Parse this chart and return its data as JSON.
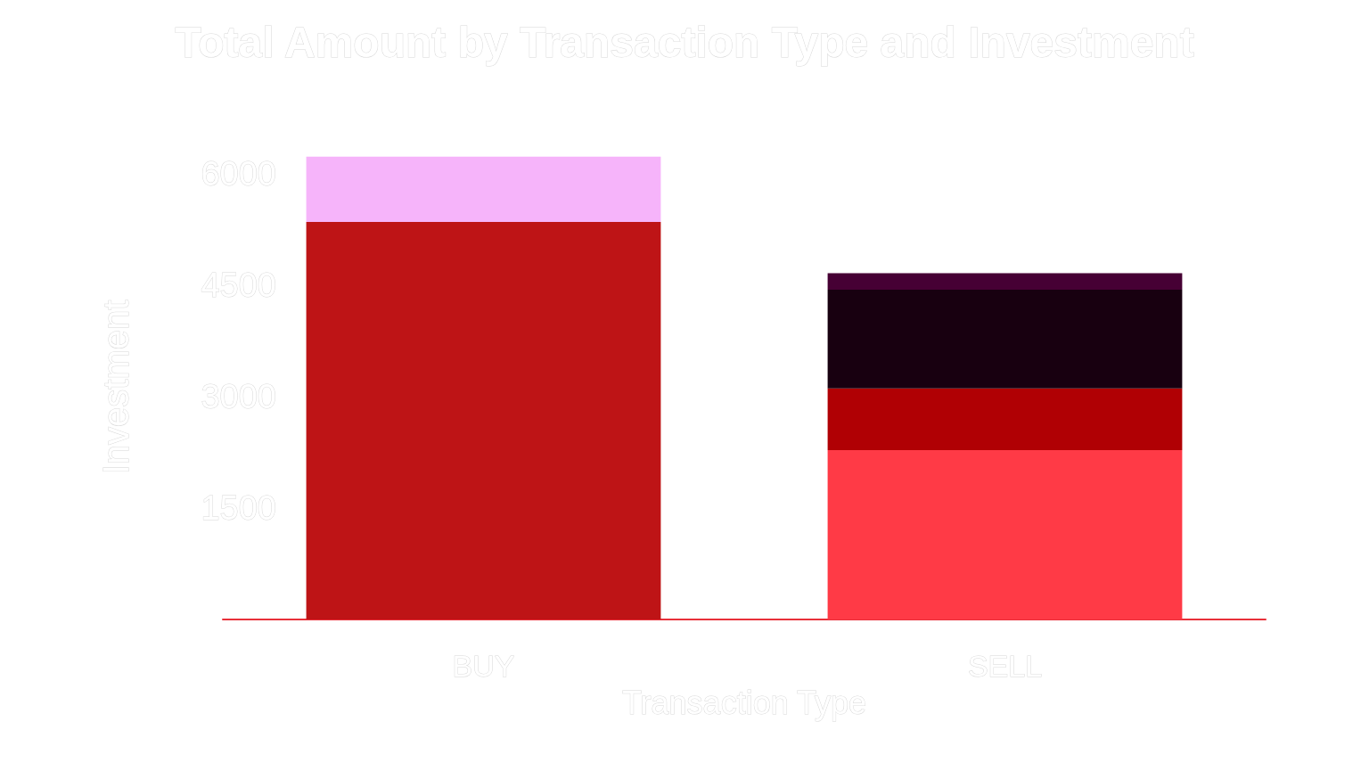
{
  "chart_data": {
    "type": "bar",
    "title": "Total Amount by Transaction Type and Investment",
    "xlabel": "Transaction Type",
    "ylabel": "Investment",
    "categories": [
      "BUY",
      "SELL"
    ],
    "stacked": true,
    "ylim": [
      0,
      6250
    ],
    "yticks": [
      1500,
      3000,
      4500,
      6000
    ],
    "grid": false,
    "series": [
      {
        "color": "#be1416",
        "values": [
          5350,
          null
        ]
      },
      {
        "color": "#f6b4fa",
        "values": [
          880,
          null
        ]
      },
      {
        "color": "#ff3a46",
        "values": [
          null,
          2280
        ]
      },
      {
        "color": "#b00004",
        "values": [
          null,
          830
        ]
      },
      {
        "color": "#180010",
        "values": [
          null,
          1330
        ]
      },
      {
        "color": "#460034",
        "values": [
          null,
          220
        ]
      }
    ]
  }
}
